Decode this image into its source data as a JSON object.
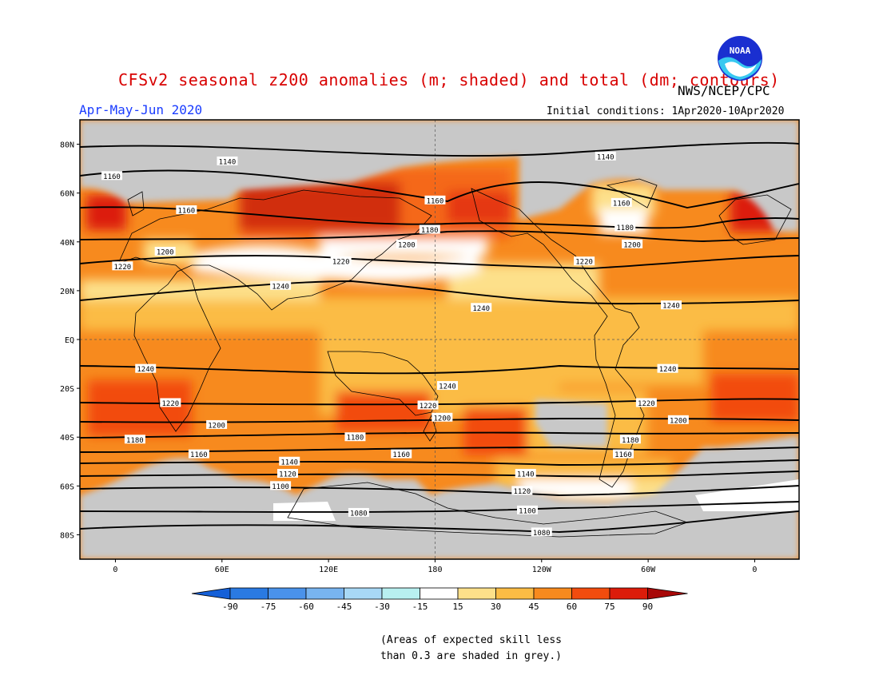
{
  "header": {
    "title": "CFSv2 seasonal z200 anomalies (m; shaded) and total (dm; contours)",
    "agency": "NWS/NCEP/CPC",
    "period": "Apr-May-Jun 2020",
    "initial_conditions": "Initial conditions: 1Apr2020-10Apr2020",
    "logo_text": "NOAA"
  },
  "map": {
    "lat_ticks": [
      {
        "lat": 80,
        "label": "80N"
      },
      {
        "lat": 60,
        "label": "60N"
      },
      {
        "lat": 40,
        "label": "40N"
      },
      {
        "lat": 20,
        "label": "20N"
      },
      {
        "lat": 0,
        "label": "EQ"
      },
      {
        "lat": -20,
        "label": "20S"
      },
      {
        "lat": -40,
        "label": "40S"
      },
      {
        "lat": -60,
        "label": "60S"
      },
      {
        "lat": -80,
        "label": "80S"
      }
    ],
    "lon_ticks": [
      {
        "lon": 0,
        "label": "0"
      },
      {
        "lon": 60,
        "label": "60E"
      },
      {
        "lon": 120,
        "label": "120E"
      },
      {
        "lon": 180,
        "label": "180"
      },
      {
        "lon": 240,
        "label": "120W"
      },
      {
        "lon": 300,
        "label": "60W"
      },
      {
        "lon": 360,
        "label": "0"
      }
    ],
    "lon_range": [
      -20,
      385
    ],
    "lat_range": [
      -90,
      90
    ],
    "grid": "dashed"
  },
  "legend": {
    "labels": [
      "-90",
      "-75",
      "-60",
      "-45",
      "-30",
      "-15",
      "15",
      "30",
      "45",
      "60",
      "75",
      "90"
    ],
    "colors": [
      "#1560d8",
      "#2a7ae2",
      "#4a92ea",
      "#78b4f0",
      "#a8d8f5",
      "#b8f0f0",
      "#ffffff",
      "#fde08a",
      "#fbbc45",
      "#f78a1e",
      "#f24c0e",
      "#dc1c0a",
      "#a80808"
    ]
  },
  "skill_note": "(Areas of expected skill less\nthan 0.3 are shaded in grey.)",
  "contour_labels": [
    {
      "text": "1140",
      "lon": 63,
      "lat": 73
    },
    {
      "text": "1140",
      "lon": 276,
      "lat": 75
    },
    {
      "text": "1160",
      "lon": -2,
      "lat": 67
    },
    {
      "text": "1160",
      "lon": 180,
      "lat": 57
    },
    {
      "text": "1160",
      "lon": 285,
      "lat": 56
    },
    {
      "text": "1160",
      "lon": 40,
      "lat": 53
    },
    {
      "text": "1180",
      "lon": 177,
      "lat": 45
    },
    {
      "text": "1180",
      "lon": 287,
      "lat": 46
    },
    {
      "text": "1200",
      "lon": 164,
      "lat": 39
    },
    {
      "text": "1200",
      "lon": 291,
      "lat": 39
    },
    {
      "text": "1200",
      "lon": 28,
      "lat": 36
    },
    {
      "text": "1220",
      "lon": 4,
      "lat": 30
    },
    {
      "text": "1220",
      "lon": 127,
      "lat": 32
    },
    {
      "text": "1220",
      "lon": 264,
      "lat": 32
    },
    {
      "text": "1240",
      "lon": 93,
      "lat": 22
    },
    {
      "text": "1240",
      "lon": 206,
      "lat": 13
    },
    {
      "text": "1240",
      "lon": 313,
      "lat": 14
    },
    {
      "text": "1240",
      "lon": 17,
      "lat": -12
    },
    {
      "text": "1240",
      "lon": 187,
      "lat": -19
    },
    {
      "text": "1240",
      "lon": 311,
      "lat": -12
    },
    {
      "text": "1220",
      "lon": 31,
      "lat": -26
    },
    {
      "text": "1220",
      "lon": 176,
      "lat": -27
    },
    {
      "text": "1220",
      "lon": 299,
      "lat": -26
    },
    {
      "text": "1200",
      "lon": 57,
      "lat": -35
    },
    {
      "text": "1200",
      "lon": 184,
      "lat": -32
    },
    {
      "text": "1200",
      "lon": 317,
      "lat": -33
    },
    {
      "text": "1180",
      "lon": 11,
      "lat": -41
    },
    {
      "text": "1180",
      "lon": 135,
      "lat": -40
    },
    {
      "text": "1180",
      "lon": 290,
      "lat": -41
    },
    {
      "text": "1160",
      "lon": 47,
      "lat": -47
    },
    {
      "text": "1160",
      "lon": 161,
      "lat": -47
    },
    {
      "text": "1160",
      "lon": 286,
      "lat": -47
    },
    {
      "text": "1140",
      "lon": 98,
      "lat": -50
    },
    {
      "text": "1140",
      "lon": 231,
      "lat": -55
    },
    {
      "text": "1120",
      "lon": 97,
      "lat": -55
    },
    {
      "text": "1120",
      "lon": 229,
      "lat": -62
    },
    {
      "text": "1100",
      "lon": 93,
      "lat": -60
    },
    {
      "text": "1100",
      "lon": 232,
      "lat": -70
    },
    {
      "text": "1080",
      "lon": 137,
      "lat": -71
    },
    {
      "text": "1080",
      "lon": 240,
      "lat": -79
    }
  ]
}
